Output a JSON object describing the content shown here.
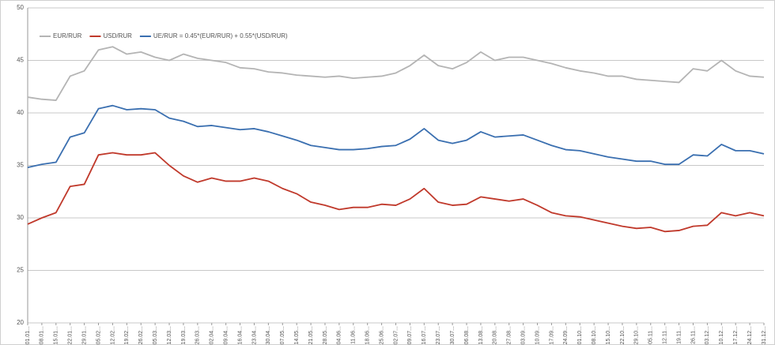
{
  "chart_data": {
    "type": "line",
    "categories": [
      "01.01...",
      "08.01...",
      "15.01...",
      "22.01...",
      "29.01...",
      "05.02...",
      "12.02...",
      "19.02...",
      "26.02...",
      "05.03...",
      "12.03...",
      "19.03...",
      "26.03...",
      "02.04...",
      "09.04...",
      "16.04...",
      "23.04...",
      "30.04...",
      "07.05...",
      "14.05...",
      "21.05...",
      "28.05...",
      "04.06...",
      "11.06...",
      "18.06...",
      "25.06...",
      "02.07...",
      "09.07...",
      "16.07...",
      "23.07...",
      "30.07...",
      "06.08...",
      "13.08...",
      "20.08...",
      "27.08...",
      "03.09...",
      "10.09...",
      "17.09...",
      "24.09...",
      "01.10...",
      "08.10...",
      "15.10...",
      "22.10...",
      "29.10...",
      "05.11...",
      "12.11...",
      "19.11...",
      "26.11...",
      "03.12...",
      "10.12...",
      "17.12...",
      "24.12...",
      "31.12..."
    ],
    "series": [
      {
        "name": "EUR/RUR",
        "color": "#b4b4b4",
        "values": [
          41.5,
          41.3,
          41.2,
          43.5,
          44.0,
          46.0,
          46.3,
          45.6,
          45.8,
          45.3,
          45.0,
          45.6,
          45.2,
          45.0,
          44.8,
          44.3,
          44.2,
          43.9,
          43.8,
          43.6,
          43.5,
          43.4,
          43.5,
          43.3,
          43.4,
          43.5,
          43.8,
          44.5,
          45.5,
          44.5,
          44.2,
          44.8,
          45.8,
          45.0,
          45.3,
          45.3,
          45.0,
          44.7,
          44.3,
          44.0,
          43.8,
          43.5,
          43.5,
          43.2,
          43.1,
          43.0,
          42.9,
          44.2,
          44.0,
          45.0,
          44.0,
          43.5,
          43.4
        ]
      },
      {
        "name": "USD/RUR",
        "color": "#c0392b",
        "values": [
          29.4,
          30.0,
          30.5,
          33.0,
          33.2,
          36.0,
          36.2,
          36.0,
          36.0,
          36.2,
          35.0,
          34.0,
          33.4,
          33.8,
          33.5,
          33.5,
          33.8,
          33.5,
          32.8,
          32.3,
          31.5,
          31.2,
          30.8,
          31.0,
          31.0,
          31.3,
          31.2,
          31.8,
          32.8,
          31.5,
          31.2,
          31.3,
          32.0,
          31.8,
          31.6,
          31.8,
          31.2,
          30.5,
          30.2,
          30.1,
          29.8,
          29.5,
          29.2,
          29.0,
          29.1,
          28.7,
          28.8,
          29.2,
          29.3,
          30.5,
          30.2,
          30.5,
          30.2
        ]
      },
      {
        "name": "UE/RUR = 0.45*(EUR/RUR) + 0.55*(USD/RUR)",
        "color": "#3a6fb0",
        "values": [
          34.8,
          35.1,
          35.3,
          37.7,
          38.1,
          40.4,
          40.7,
          40.3,
          40.4,
          40.3,
          39.5,
          39.2,
          38.7,
          38.8,
          38.6,
          38.4,
          38.5,
          38.2,
          37.8,
          37.4,
          36.9,
          36.7,
          36.5,
          36.5,
          36.6,
          36.8,
          36.9,
          37.5,
          38.5,
          37.4,
          37.1,
          37.4,
          38.2,
          37.7,
          37.8,
          37.9,
          37.4,
          36.9,
          36.5,
          36.4,
          36.1,
          35.8,
          35.6,
          35.4,
          35.4,
          35.1,
          35.1,
          36.0,
          35.9,
          37.0,
          36.4,
          36.4,
          36.1
        ]
      }
    ],
    "ylim": [
      20,
      50
    ],
    "yticks": [
      20,
      25,
      30,
      35,
      40,
      45,
      50
    ],
    "grid": true,
    "legend": "top-left"
  }
}
